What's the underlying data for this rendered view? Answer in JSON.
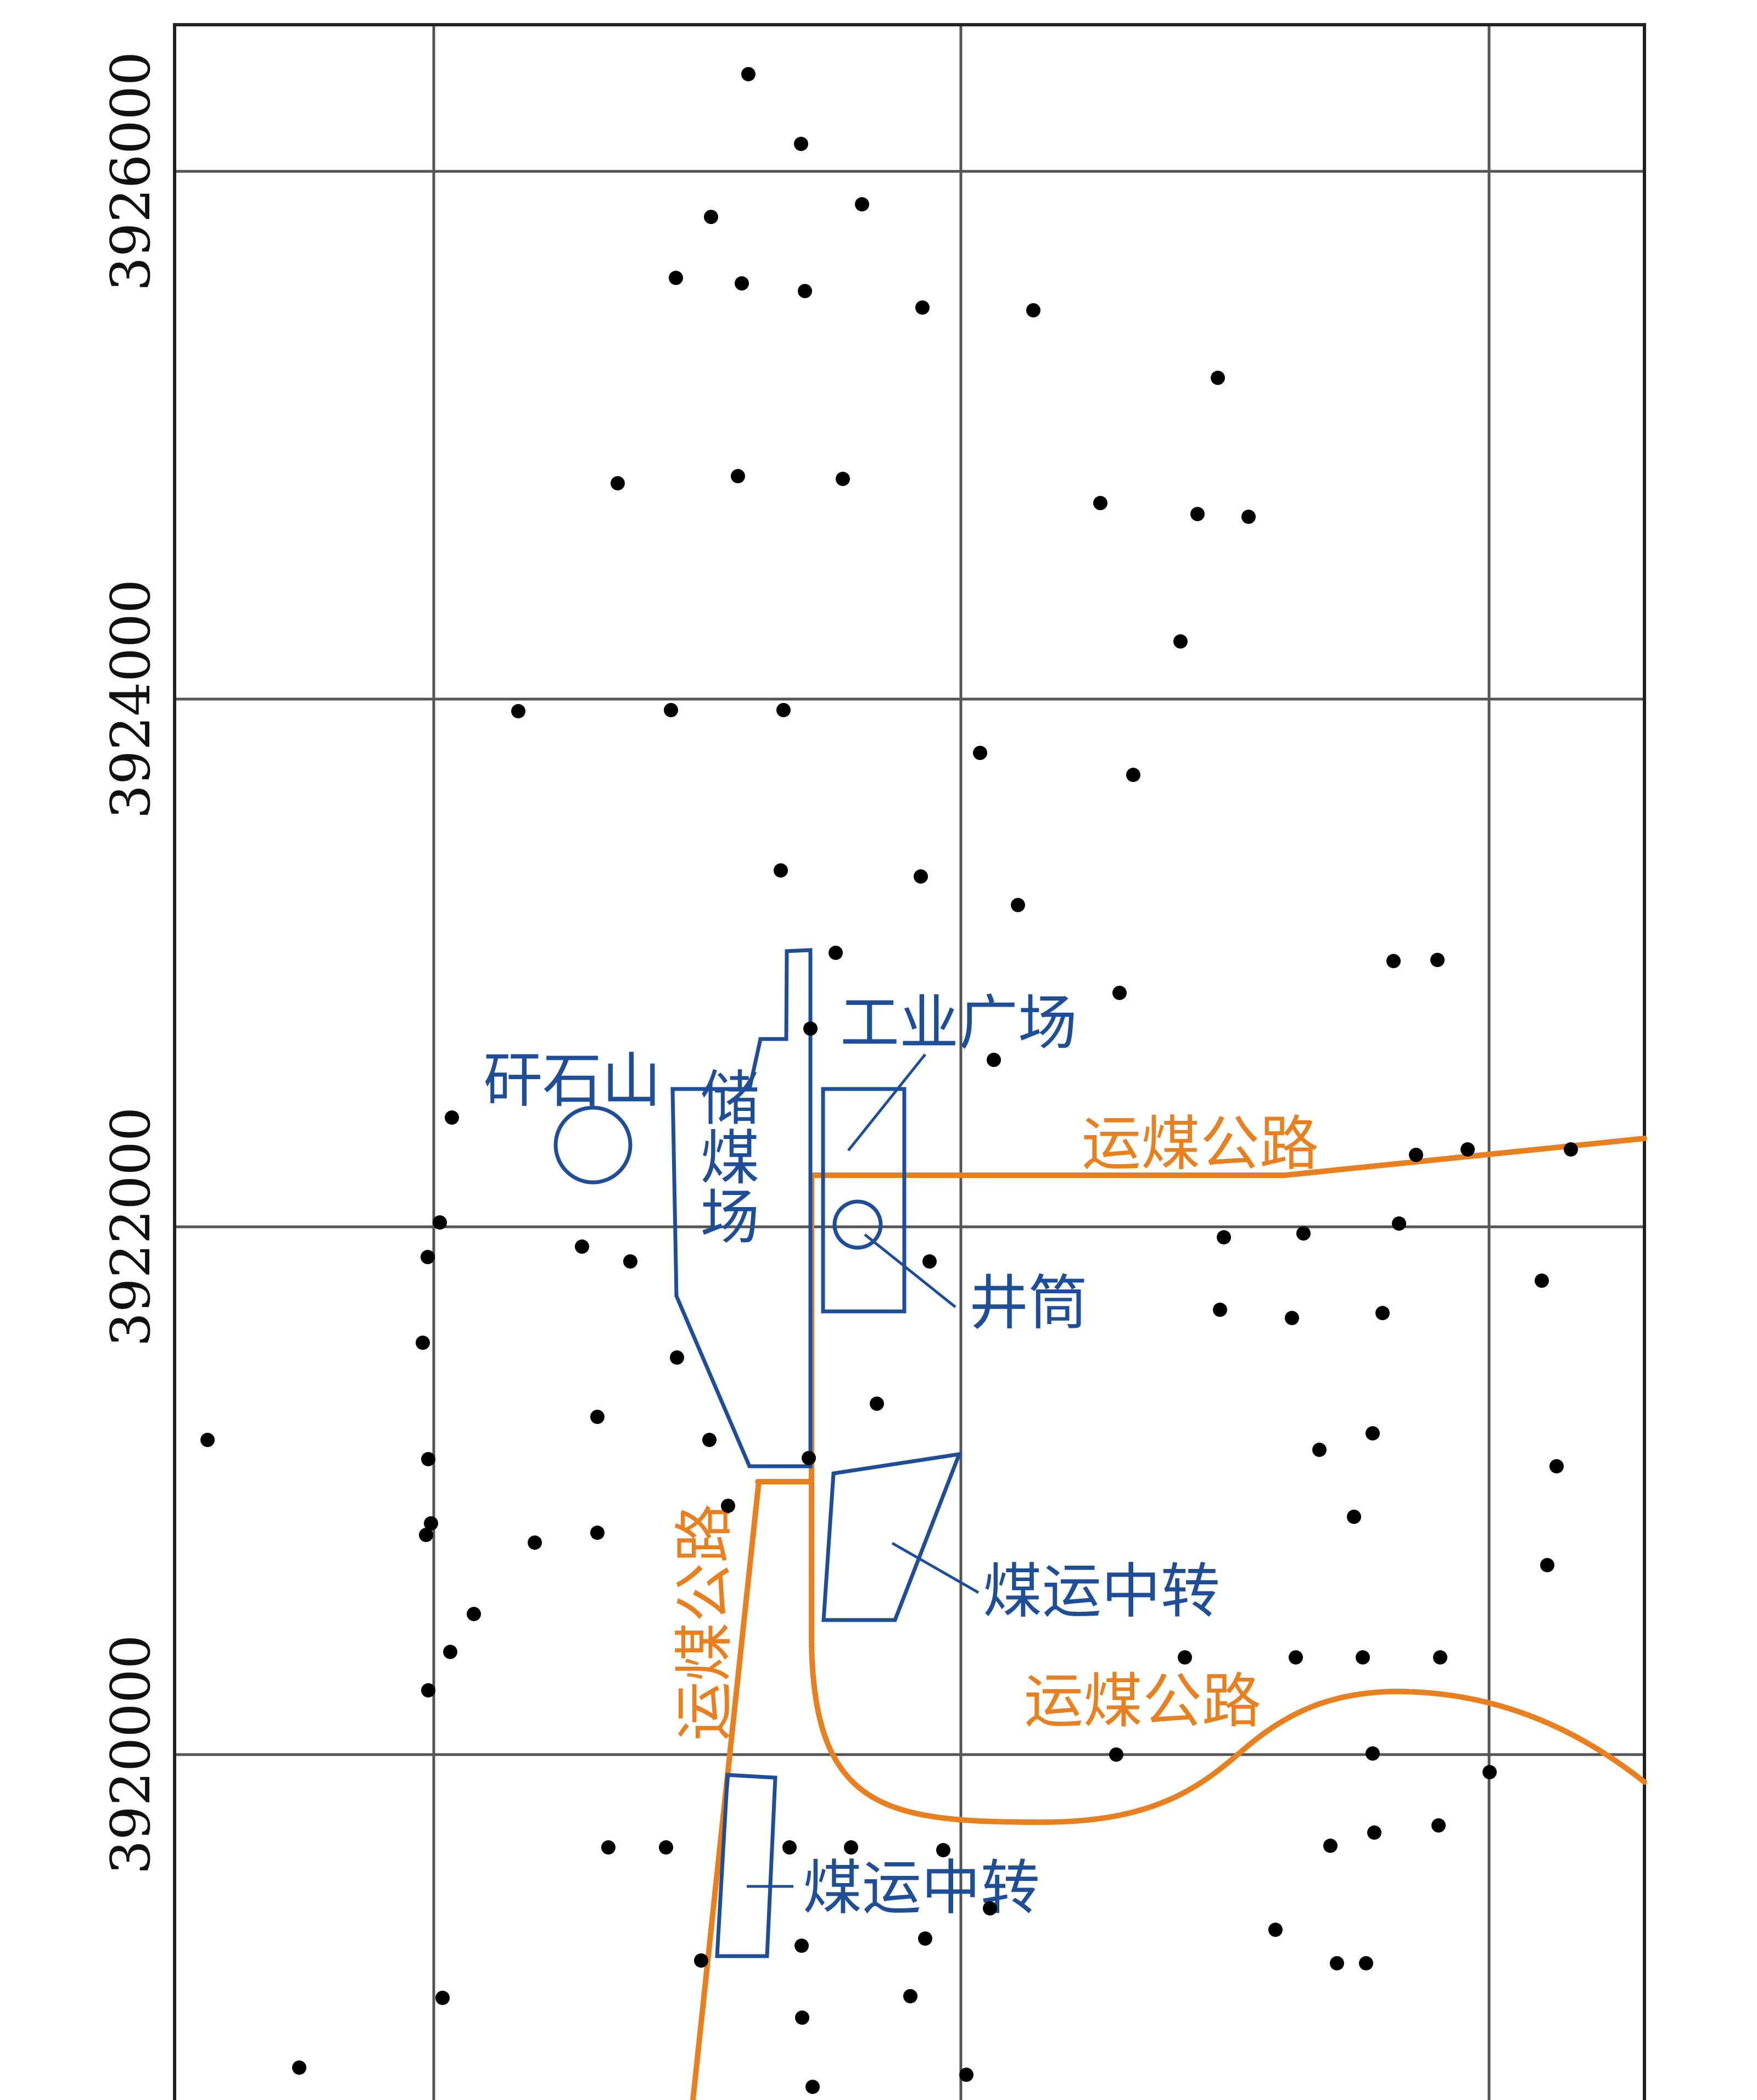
{
  "colors": {
    "grid": "#555555",
    "frame": "#222222",
    "feature": "#1f4e99",
    "road": "#e8801f",
    "borehole": "#000000"
  },
  "y_axis_labels": [
    "3926000",
    "3924000",
    "3922000",
    "3920000"
  ],
  "labels": {
    "gangue_hill": "矸石山",
    "coal_storage": "储煤场",
    "industrial_square": "工业广场",
    "shaft": "井筒",
    "transfer_1": "煤运中转",
    "transfer_2": "煤运中转",
    "road_east": "运煤公路",
    "road_south": "运煤公路",
    "road_vertical": "运煤公路"
  },
  "boreholes": {
    "icon": "borehole-dot",
    "count": 96
  }
}
